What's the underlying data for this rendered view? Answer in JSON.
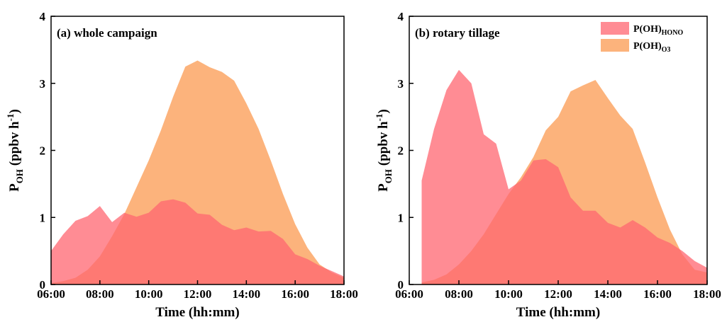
{
  "chart_data": [
    {
      "type": "area",
      "annotation": "(a) whole campaign",
      "xlabel": "Time (hh:mm)",
      "ylabel": {
        "base": "P",
        "sub": "OH",
        "rest": " (ppbv h",
        "sup": "-1",
        "end": ")"
      },
      "xlim": [
        6,
        18
      ],
      "ylim": [
        0,
        4
      ],
      "xticks": [
        {
          "value": 6,
          "label": "06:00"
        },
        {
          "value": 8,
          "label": "08:00"
        },
        {
          "value": 10,
          "label": "10:00"
        },
        {
          "value": 12,
          "label": "12:00"
        },
        {
          "value": 14,
          "label": "14:00"
        },
        {
          "value": 16,
          "label": "16:00"
        },
        {
          "value": 18,
          "label": "18:00"
        }
      ],
      "yticks": [
        0,
        1,
        2,
        3,
        4
      ],
      "x": [
        6,
        6.5,
        7,
        7.5,
        8,
        8.5,
        9,
        9.5,
        10,
        10.5,
        11,
        11.5,
        12,
        12.5,
        13,
        13.5,
        14,
        14.5,
        15,
        15.5,
        16,
        16.5,
        17,
        17.5,
        18
      ],
      "series": [
        {
          "name": "P(OH)",
          "subscript": "O3",
          "color": "#fb9a50",
          "values": [
            0.02,
            0.05,
            0.1,
            0.22,
            0.42,
            0.72,
            1.05,
            1.45,
            1.85,
            2.3,
            2.8,
            3.25,
            3.34,
            3.24,
            3.17,
            3.04,
            2.7,
            2.32,
            1.85,
            1.35,
            0.9,
            0.55,
            0.3,
            0.18,
            0.1
          ]
        },
        {
          "name": "P(OH)",
          "subscript": "HONO",
          "color": "#ff6670",
          "values": [
            0.5,
            0.75,
            0.95,
            1.02,
            1.17,
            0.93,
            1.07,
            1.01,
            1.07,
            1.24,
            1.27,
            1.22,
            1.06,
            1.04,
            0.89,
            0.81,
            0.85,
            0.79,
            0.8,
            0.68,
            0.45,
            0.38,
            0.28,
            0.2,
            0.12
          ]
        }
      ],
      "legend": false
    },
    {
      "type": "area",
      "annotation": "(b) rotary tillage",
      "xlabel": "Time (hh:mm)",
      "ylabel": {
        "base": "P",
        "sub": "OH",
        "rest": " (ppbv h",
        "sup": "-1",
        "end": ")"
      },
      "xlim": [
        6,
        18
      ],
      "ylim": [
        0,
        4
      ],
      "xticks": [
        {
          "value": 6,
          "label": "06:00"
        },
        {
          "value": 8,
          "label": "08:00"
        },
        {
          "value": 10,
          "label": "10:00"
        },
        {
          "value": 12,
          "label": "12:00"
        },
        {
          "value": 14,
          "label": "14:00"
        },
        {
          "value": 16,
          "label": "16:00"
        },
        {
          "value": 18,
          "label": "18:00"
        }
      ],
      "yticks": [
        0,
        1,
        2,
        3,
        4
      ],
      "x": [
        6.5,
        7,
        7.5,
        8,
        8.5,
        9,
        9.5,
        10,
        10.5,
        11,
        11.5,
        12,
        12.5,
        13,
        13.5,
        14,
        14.5,
        15,
        15.5,
        16,
        16.5,
        17,
        17.5,
        18
      ],
      "series": [
        {
          "name": "P(OH)",
          "subscript": "O3",
          "color": "#fb9a50",
          "values": [
            0.03,
            0.07,
            0.15,
            0.3,
            0.5,
            0.75,
            1.05,
            1.35,
            1.6,
            1.9,
            2.3,
            2.5,
            2.88,
            2.97,
            3.05,
            2.78,
            2.52,
            2.32,
            1.82,
            1.3,
            0.82,
            0.45,
            0.22,
            0.18
          ]
        },
        {
          "name": "P(OH)",
          "subscript": "HONO",
          "color": "#ff6670",
          "values": [
            1.55,
            2.32,
            2.9,
            3.2,
            3.0,
            2.24,
            2.1,
            1.42,
            1.55,
            1.85,
            1.87,
            1.75,
            1.3,
            1.1,
            1.1,
            0.92,
            0.85,
            0.96,
            0.85,
            0.7,
            0.62,
            0.5,
            0.35,
            0.25
          ]
        }
      ],
      "legend": true,
      "legend_loc": "upper right"
    }
  ]
}
